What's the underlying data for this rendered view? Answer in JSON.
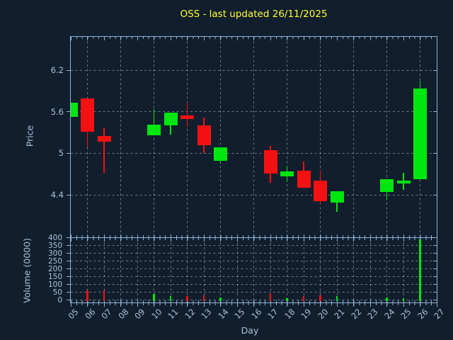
{
  "colors": {
    "background": "#111E2D",
    "axis": "#8FB2D4",
    "label": "#A9C3DF",
    "grid": "#C7D3DF",
    "up": "#00E60E",
    "down": "#F51111",
    "title": "#FFFF33"
  },
  "chart_data": {
    "type": "candlestick",
    "title": "OSS - last updated 26/11/2025",
    "xlabel": "Day",
    "ylabel": "Price",
    "ylabel2": "Volume (0000)",
    "grid": true,
    "price_ticks": [
      "6.2",
      "5.6",
      "5",
      "4.4"
    ],
    "volume_ticks": [
      "400",
      "350",
      "300",
      "250",
      "200",
      "150",
      "100",
      "50",
      "0"
    ],
    "x_ticks": [
      "05",
      "06",
      "07",
      "08",
      "09",
      "10",
      "11",
      "12",
      "13",
      "14",
      "15",
      "16",
      "17",
      "18",
      "19",
      "20",
      "21",
      "22",
      "23",
      "24",
      "25",
      "26",
      "27"
    ],
    "price_ylim": [
      3.8,
      6.68
    ],
    "volume_ylim": [
      0,
      400
    ],
    "candles": [
      {
        "day": 5,
        "open": 5.53,
        "high": 5.73,
        "low": 5.53,
        "close": 5.73,
        "volume": 0
      },
      {
        "day": 6,
        "open": 5.79,
        "high": 5.79,
        "low": 5.09,
        "close": 5.31,
        "volume": 60
      },
      {
        "day": 7,
        "open": 5.25,
        "high": 5.37,
        "low": 4.72,
        "close": 5.17,
        "volume": 60
      },
      {
        "day": 10,
        "open": 5.26,
        "high": 5.64,
        "low": 5.26,
        "close": 5.41,
        "volume": 38
      },
      {
        "day": 11,
        "open": 5.4,
        "high": 5.59,
        "low": 5.27,
        "close": 5.59,
        "volume": 27
      },
      {
        "day": 12,
        "open": 5.55,
        "high": 5.73,
        "low": 5.38,
        "close": 5.49,
        "volume": 23
      },
      {
        "day": 13,
        "open": 5.4,
        "high": 5.51,
        "low": 5.0,
        "close": 5.12,
        "volume": 31
      },
      {
        "day": 14,
        "open": 4.89,
        "high": 5.09,
        "low": 4.85,
        "close": 5.09,
        "volume": 16
      },
      {
        "day": 17,
        "open": 5.04,
        "high": 5.11,
        "low": 4.57,
        "close": 4.71,
        "volume": 43
      },
      {
        "day": 18,
        "open": 4.67,
        "high": 4.82,
        "low": 4.58,
        "close": 4.74,
        "volume": 10
      },
      {
        "day": 19,
        "open": 4.75,
        "high": 4.88,
        "low": 4.5,
        "close": 4.5,
        "volume": 26
      },
      {
        "day": 20,
        "open": 4.6,
        "high": 4.76,
        "low": 4.27,
        "close": 4.31,
        "volume": 31
      },
      {
        "day": 21,
        "open": 4.29,
        "high": 4.45,
        "low": 4.15,
        "close": 4.45,
        "volume": 23
      },
      {
        "day": 24,
        "open": 4.44,
        "high": 4.63,
        "low": 4.33,
        "close": 4.63,
        "volume": 16
      },
      {
        "day": 25,
        "open": 4.56,
        "high": 4.72,
        "low": 4.47,
        "close": 4.6,
        "volume": 11
      },
      {
        "day": 26,
        "open": 4.62,
        "high": 6.05,
        "low": 4.62,
        "close": 5.93,
        "volume": 390
      }
    ]
  }
}
